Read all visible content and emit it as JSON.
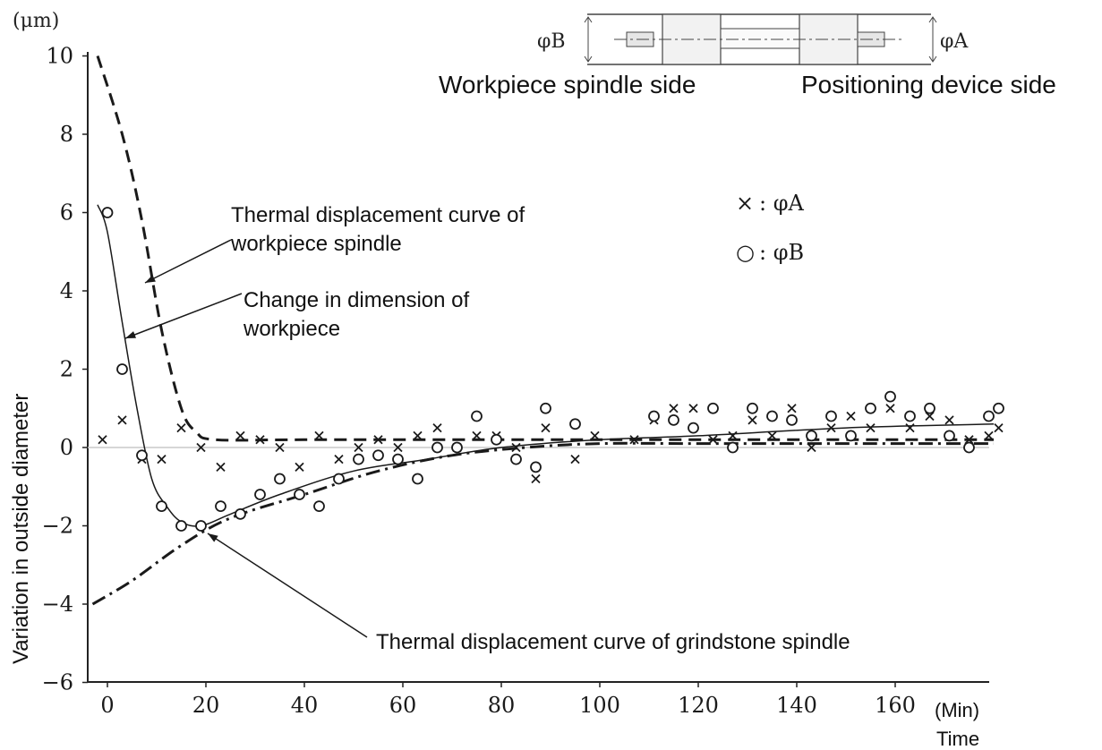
{
  "chart_data": {
    "type": "scatter",
    "title": "",
    "xlabel": "Time",
    "x_unit": "(Min)",
    "ylabel": "Variation in outside diameter",
    "y_unit": "(μm)",
    "xlim": [
      -2,
      178
    ],
    "ylim": [
      -6,
      10
    ],
    "x_ticks": [
      0,
      20,
      40,
      60,
      80,
      100,
      120,
      140,
      160
    ],
    "y_ticks": [
      -6,
      -4,
      -2,
      0,
      2,
      4,
      6,
      8,
      10
    ],
    "x_tick_labels": [
      "0",
      "20",
      "40",
      "60",
      "80",
      "100",
      "120",
      "140",
      "160"
    ],
    "y_tick_labels": [
      "−6",
      "−4",
      "−2",
      "0",
      "2",
      "4",
      "6",
      "8",
      "10"
    ],
    "legend": [
      {
        "marker": "×",
        "label": ": φA"
      },
      {
        "marker": "○",
        "label": ": φB"
      }
    ],
    "legend_position": "top-right",
    "series": [
      {
        "name": "φA",
        "marker": "x",
        "points": [
          [
            -1,
            0.2
          ],
          [
            3,
            0.7
          ],
          [
            7,
            -0.3
          ],
          [
            11,
            -0.3
          ],
          [
            15,
            0.5
          ],
          [
            19,
            0
          ],
          [
            23,
            -0.5
          ],
          [
            27,
            0.3
          ],
          [
            31,
            0.2
          ],
          [
            35,
            0
          ],
          [
            39,
            -0.5
          ],
          [
            43,
            0.3
          ],
          [
            47,
            -0.3
          ],
          [
            51,
            0
          ],
          [
            55,
            0.2
          ],
          [
            59,
            0
          ],
          [
            63,
            0.3
          ],
          [
            67,
            0.5
          ],
          [
            71,
            0
          ],
          [
            75,
            0.3
          ],
          [
            79,
            0.3
          ],
          [
            83,
            0
          ],
          [
            87,
            -0.8
          ],
          [
            89,
            0.5
          ],
          [
            95,
            -0.3
          ],
          [
            99,
            0.3
          ],
          [
            107,
            0.2
          ],
          [
            111,
            0.7
          ],
          [
            115,
            1
          ],
          [
            119,
            1
          ],
          [
            123,
            0.2
          ],
          [
            127,
            0.3
          ],
          [
            131,
            0.7
          ],
          [
            135,
            0.3
          ],
          [
            139,
            1
          ],
          [
            143,
            0
          ],
          [
            147,
            0.5
          ],
          [
            151,
            0.8
          ],
          [
            155,
            0.5
          ],
          [
            159,
            1
          ],
          [
            163,
            0.5
          ],
          [
            167,
            0.8
          ],
          [
            171,
            0.7
          ],
          [
            175,
            0.2
          ],
          [
            179,
            0.3
          ],
          [
            181,
            0.5
          ]
        ]
      },
      {
        "name": "φB",
        "marker": "o",
        "points": [
          [
            0,
            6
          ],
          [
            3,
            2
          ],
          [
            7,
            -0.2
          ],
          [
            11,
            -1.5
          ],
          [
            15,
            -2
          ],
          [
            19,
            -2
          ],
          [
            23,
            -1.5
          ],
          [
            27,
            -1.7
          ],
          [
            31,
            -1.2
          ],
          [
            35,
            -0.8
          ],
          [
            39,
            -1.2
          ],
          [
            43,
            -1.5
          ],
          [
            47,
            -0.8
          ],
          [
            51,
            -0.3
          ],
          [
            55,
            -0.2
          ],
          [
            59,
            -0.3
          ],
          [
            63,
            -0.8
          ],
          [
            67,
            0
          ],
          [
            71,
            0
          ],
          [
            75,
            0.8
          ],
          [
            79,
            0.2
          ],
          [
            83,
            -0.3
          ],
          [
            87,
            -0.5
          ],
          [
            89,
            1
          ],
          [
            95,
            0.6
          ],
          [
            111,
            0.8
          ],
          [
            115,
            0.7
          ],
          [
            119,
            0.5
          ],
          [
            123,
            1
          ],
          [
            127,
            0
          ],
          [
            131,
            1
          ],
          [
            135,
            0.8
          ],
          [
            139,
            0.7
          ],
          [
            143,
            0.3
          ],
          [
            147,
            0.8
          ],
          [
            151,
            0.3
          ],
          [
            155,
            1
          ],
          [
            159,
            1.3
          ],
          [
            163,
            0.8
          ],
          [
            167,
            1
          ],
          [
            171,
            0.3
          ],
          [
            175,
            0
          ],
          [
            179,
            0.8
          ],
          [
            181,
            1
          ]
        ]
      }
    ],
    "curves": [
      {
        "label": "Thermal displacement curve of workpiece spindle",
        "style": "dashed-bold",
        "points": [
          [
            -2,
            10
          ],
          [
            3,
            8
          ],
          [
            7,
            5.8
          ],
          [
            11,
            3
          ],
          [
            15,
            1
          ],
          [
            18,
            0.4
          ],
          [
            22,
            0.2
          ],
          [
            40,
            0.2
          ],
          [
            80,
            0.2
          ],
          [
            120,
            0.2
          ],
          [
            180,
            0.2
          ]
        ]
      },
      {
        "label": "Change in dimension of workpiece",
        "style": "solid-thin",
        "points": [
          [
            -2,
            6.2
          ],
          [
            0,
            5.5
          ],
          [
            3,
            3.2
          ],
          [
            6,
            1
          ],
          [
            9,
            -0.8
          ],
          [
            12,
            -1.5
          ],
          [
            15,
            -1.9
          ],
          [
            19,
            -2
          ],
          [
            25,
            -1.7
          ],
          [
            35,
            -1.2
          ],
          [
            50,
            -0.6
          ],
          [
            65,
            -0.3
          ],
          [
            80,
            0
          ],
          [
            100,
            0.2
          ],
          [
            120,
            0.3
          ],
          [
            150,
            0.5
          ],
          [
            180,
            0.6
          ]
        ]
      },
      {
        "label": "Thermal displacement curve of grindstone spindle",
        "style": "dash-dot-bold",
        "points": [
          [
            -3,
            -4
          ],
          [
            5,
            -3.4
          ],
          [
            15,
            -2.5
          ],
          [
            25,
            -1.8
          ],
          [
            40,
            -1.2
          ],
          [
            55,
            -0.6
          ],
          [
            70,
            -0.2
          ],
          [
            85,
            0
          ],
          [
            100,
            0.1
          ],
          [
            120,
            0.1
          ],
          [
            150,
            0.1
          ],
          [
            180,
            0.1
          ]
        ]
      }
    ],
    "annotations": [
      {
        "lines": [
          "Thermal displacement curve of",
          "workpiece spindle"
        ]
      },
      {
        "lines": [
          "Change in dimension of",
          "workpiece"
        ]
      },
      {
        "lines": [
          "Thermal displacement curve of grindstone spindle"
        ]
      }
    ]
  },
  "diagram": {
    "left_label": "Workpiece spindle side",
    "right_label": "Positioning device side",
    "dim_left": "φB",
    "dim_right": "φA"
  },
  "colors": {
    "ink": "#1a1a1a",
    "axis": "#222222",
    "zero_line": "#c8c8c8",
    "diagram": "#444444"
  }
}
